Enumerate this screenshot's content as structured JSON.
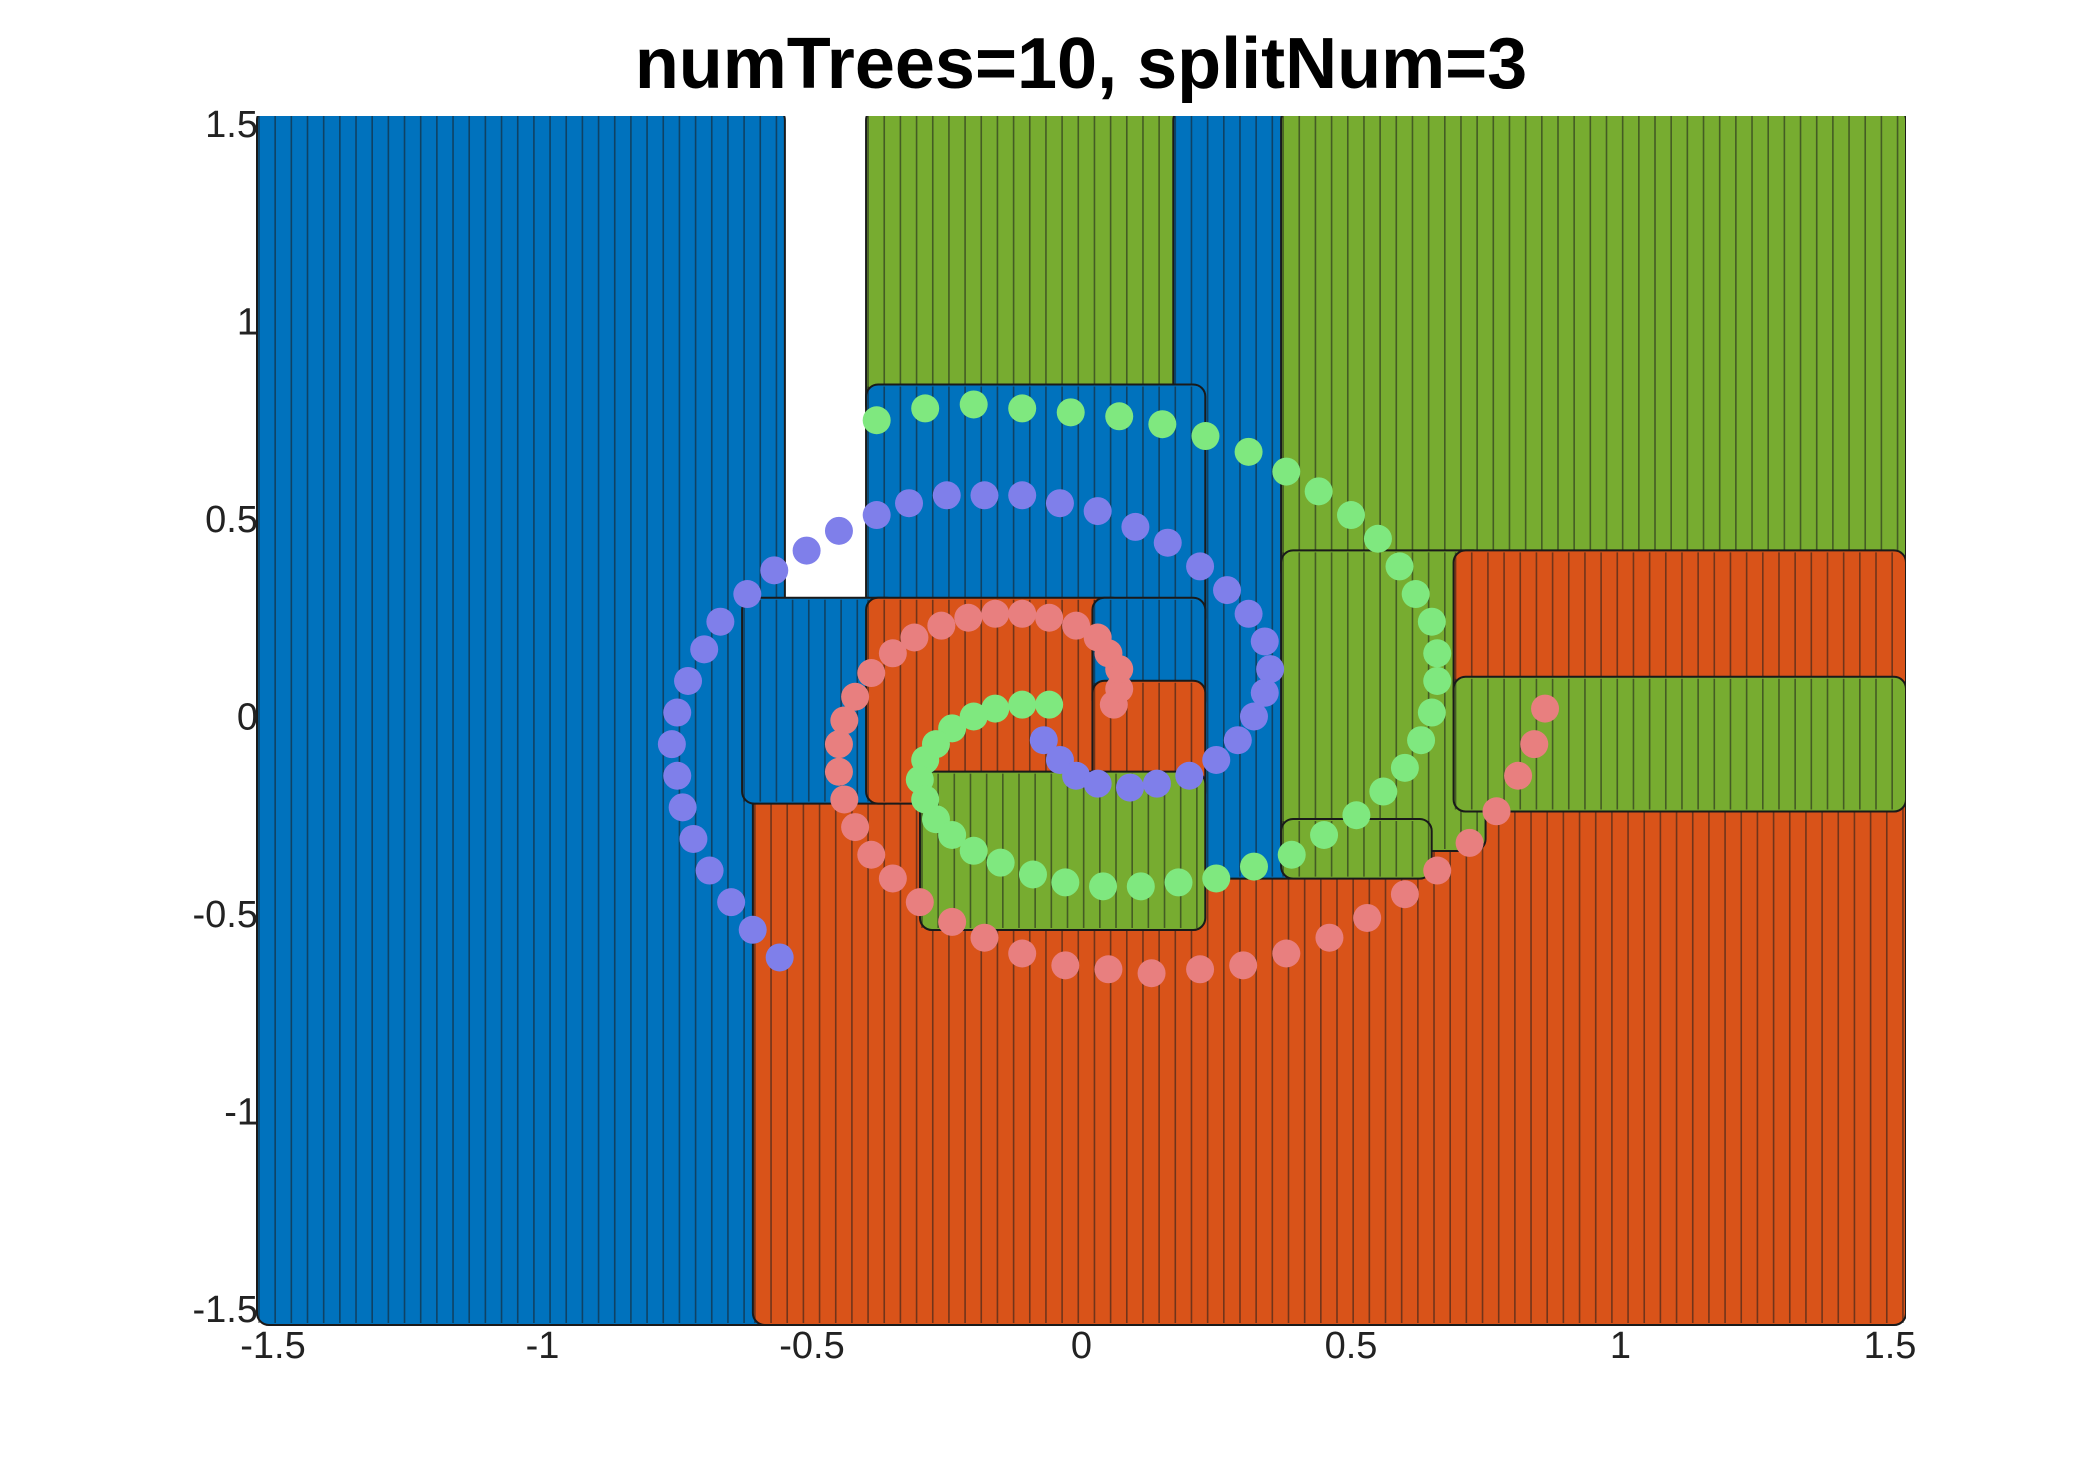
{
  "chart_data": {
    "type": "scatter",
    "title": "numTrees=10, splitNum=3",
    "xlabel": "",
    "ylabel": "",
    "xlim": [
      -1.5,
      1.5
    ],
    "ylim": [
      -1.5,
      1.5
    ],
    "x_ticks": [
      "-1.5",
      "-1",
      "-0.5",
      "0",
      "0.5",
      "1",
      "1.5"
    ],
    "y_ticks": [
      "-1.5",
      "-1",
      "-0.5",
      "0",
      "0.5",
      "1",
      "1.5"
    ],
    "grid": false,
    "legend": "none",
    "background": {
      "description": "dense grid of predicted-class markers forming decision regions",
      "grid_step": 0.03,
      "classes": [
        {
          "class": 1,
          "color": "#0072BD"
        },
        {
          "class": 2,
          "color": "#77AC30"
        },
        {
          "class": 3,
          "color": "#D95319"
        }
      ],
      "regions": [
        {
          "class": 1,
          "x": [
            -1.5,
            -0.58
          ],
          "y": [
            -1.5,
            1.5
          ]
        },
        {
          "class": 3,
          "x": [
            -0.58,
            1.5
          ],
          "y": [
            -1.5,
            -0.18
          ]
        },
        {
          "class": 2,
          "x": [
            -0.37,
            0.19
          ],
          "y": [
            0.8,
            1.5
          ]
        },
        {
          "class": 1,
          "x": [
            0.2,
            0.38
          ],
          "y": [
            -0.37,
            1.5
          ]
        },
        {
          "class": 2,
          "x": [
            0.4,
            1.5
          ],
          "y": [
            0.38,
            1.5
          ]
        },
        {
          "class": 2,
          "x": [
            0.4,
            0.72
          ],
          "y": [
            -0.3,
            0.38
          ]
        },
        {
          "class": 3,
          "x": [
            0.72,
            1.5
          ],
          "y": [
            0.06,
            0.38
          ]
        },
        {
          "class": 2,
          "x": [
            0.72,
            1.5
          ],
          "y": [
            -0.2,
            0.06
          ]
        },
        {
          "class": 1,
          "x": [
            -0.37,
            0.2
          ],
          "y": [
            0.26,
            0.8
          ]
        },
        {
          "class": 1,
          "x": [
            -0.6,
            -0.37
          ],
          "y": [
            -0.18,
            0.26
          ]
        },
        {
          "class": 3,
          "x": [
            -0.37,
            0.05
          ],
          "y": [
            -0.18,
            0.26
          ]
        },
        {
          "class": 1,
          "x": [
            0.05,
            0.2
          ],
          "y": [
            0.05,
            0.26
          ]
        },
        {
          "class": 3,
          "x": [
            0.05,
            0.2
          ],
          "y": [
            -0.18,
            0.05
          ]
        },
        {
          "class": 2,
          "x": [
            -0.27,
            0.2
          ],
          "y": [
            -0.5,
            -0.18
          ]
        },
        {
          "class": 2,
          "x": [
            0.4,
            0.62
          ],
          "y": [
            -0.37,
            -0.3
          ]
        }
      ]
    },
    "series": [
      {
        "color": "#7F7FEA",
        "points": [
          [
            -0.07,
            -0.06
          ],
          [
            -0.04,
            -0.11
          ],
          [
            -0.01,
            -0.15
          ],
          [
            0.03,
            -0.17
          ],
          [
            0.09,
            -0.18
          ],
          [
            0.14,
            -0.17
          ],
          [
            0.2,
            -0.15
          ],
          [
            0.25,
            -0.11
          ],
          [
            0.29,
            -0.06
          ],
          [
            0.32,
            0.0
          ],
          [
            0.34,
            0.06
          ],
          [
            0.35,
            0.12
          ],
          [
            0.34,
            0.19
          ],
          [
            0.31,
            0.26
          ],
          [
            0.27,
            0.32
          ],
          [
            0.22,
            0.38
          ],
          [
            0.16,
            0.44
          ],
          [
            0.1,
            0.48
          ],
          [
            0.03,
            0.52
          ],
          [
            -0.04,
            0.54
          ],
          [
            -0.11,
            0.56
          ],
          [
            -0.18,
            0.56
          ],
          [
            -0.25,
            0.56
          ],
          [
            -0.32,
            0.54
          ],
          [
            -0.38,
            0.51
          ],
          [
            -0.45,
            0.47
          ],
          [
            -0.51,
            0.42
          ],
          [
            -0.57,
            0.37
          ],
          [
            -0.62,
            0.31
          ],
          [
            -0.67,
            0.24
          ],
          [
            -0.7,
            0.17
          ],
          [
            -0.73,
            0.09
          ],
          [
            -0.75,
            0.01
          ],
          [
            -0.76,
            -0.07
          ],
          [
            -0.75,
            -0.15
          ],
          [
            -0.74,
            -0.23
          ],
          [
            -0.72,
            -0.31
          ],
          [
            -0.69,
            -0.39
          ],
          [
            -0.65,
            -0.47
          ],
          [
            -0.61,
            -0.54
          ],
          [
            -0.56,
            -0.61
          ]
        ]
      },
      {
        "color": "#E87F7F",
        "points": [
          [
            0.06,
            0.03
          ],
          [
            0.07,
            0.07
          ],
          [
            0.07,
            0.12
          ],
          [
            0.05,
            0.16
          ],
          [
            0.03,
            0.2
          ],
          [
            -0.01,
            0.23
          ],
          [
            -0.06,
            0.25
          ],
          [
            -0.11,
            0.26
          ],
          [
            -0.16,
            0.26
          ],
          [
            -0.21,
            0.25
          ],
          [
            -0.26,
            0.23
          ],
          [
            -0.31,
            0.2
          ],
          [
            -0.35,
            0.16
          ],
          [
            -0.39,
            0.11
          ],
          [
            -0.42,
            0.05
          ],
          [
            -0.44,
            -0.01
          ],
          [
            -0.45,
            -0.07
          ],
          [
            -0.45,
            -0.14
          ],
          [
            -0.44,
            -0.21
          ],
          [
            -0.42,
            -0.28
          ],
          [
            -0.39,
            -0.35
          ],
          [
            -0.35,
            -0.41
          ],
          [
            -0.3,
            -0.47
          ],
          [
            -0.24,
            -0.52
          ],
          [
            -0.18,
            -0.56
          ],
          [
            -0.11,
            -0.6
          ],
          [
            -0.03,
            -0.63
          ],
          [
            0.05,
            -0.64
          ],
          [
            0.13,
            -0.65
          ],
          [
            0.22,
            -0.64
          ],
          [
            0.3,
            -0.63
          ],
          [
            0.38,
            -0.6
          ],
          [
            0.46,
            -0.56
          ],
          [
            0.53,
            -0.51
          ],
          [
            0.6,
            -0.45
          ],
          [
            0.66,
            -0.39
          ],
          [
            0.72,
            -0.32
          ],
          [
            0.77,
            -0.24
          ],
          [
            0.81,
            -0.15
          ],
          [
            0.84,
            -0.07
          ],
          [
            0.86,
            0.02
          ]
        ]
      },
      {
        "color": "#7FE87F",
        "points": [
          [
            -0.06,
            0.03
          ],
          [
            -0.11,
            0.03
          ],
          [
            -0.16,
            0.02
          ],
          [
            -0.2,
            0.0
          ],
          [
            -0.24,
            -0.03
          ],
          [
            -0.27,
            -0.07
          ],
          [
            -0.29,
            -0.11
          ],
          [
            -0.3,
            -0.16
          ],
          [
            -0.29,
            -0.21
          ],
          [
            -0.27,
            -0.26
          ],
          [
            -0.24,
            -0.3
          ],
          [
            -0.2,
            -0.34
          ],
          [
            -0.15,
            -0.37
          ],
          [
            -0.09,
            -0.4
          ],
          [
            -0.03,
            -0.42
          ],
          [
            0.04,
            -0.43
          ],
          [
            0.11,
            -0.43
          ],
          [
            0.18,
            -0.42
          ],
          [
            0.25,
            -0.41
          ],
          [
            0.32,
            -0.38
          ],
          [
            0.39,
            -0.35
          ],
          [
            0.45,
            -0.3
          ],
          [
            0.51,
            -0.25
          ],
          [
            0.56,
            -0.19
          ],
          [
            0.6,
            -0.13
          ],
          [
            0.63,
            -0.06
          ],
          [
            0.65,
            0.01
          ],
          [
            0.66,
            0.09
          ],
          [
            0.66,
            0.16
          ],
          [
            0.65,
            0.24
          ],
          [
            0.62,
            0.31
          ],
          [
            0.59,
            0.38
          ],
          [
            0.55,
            0.45
          ],
          [
            0.5,
            0.51
          ],
          [
            0.44,
            0.57
          ],
          [
            0.38,
            0.62
          ],
          [
            0.31,
            0.67
          ],
          [
            0.23,
            0.71
          ],
          [
            0.15,
            0.74
          ],
          [
            0.07,
            0.76
          ],
          [
            -0.02,
            0.77
          ],
          [
            -0.11,
            0.78
          ],
          [
            -0.2,
            0.79
          ],
          [
            -0.29,
            0.78
          ],
          [
            -0.38,
            0.75
          ]
        ]
      }
    ]
  }
}
